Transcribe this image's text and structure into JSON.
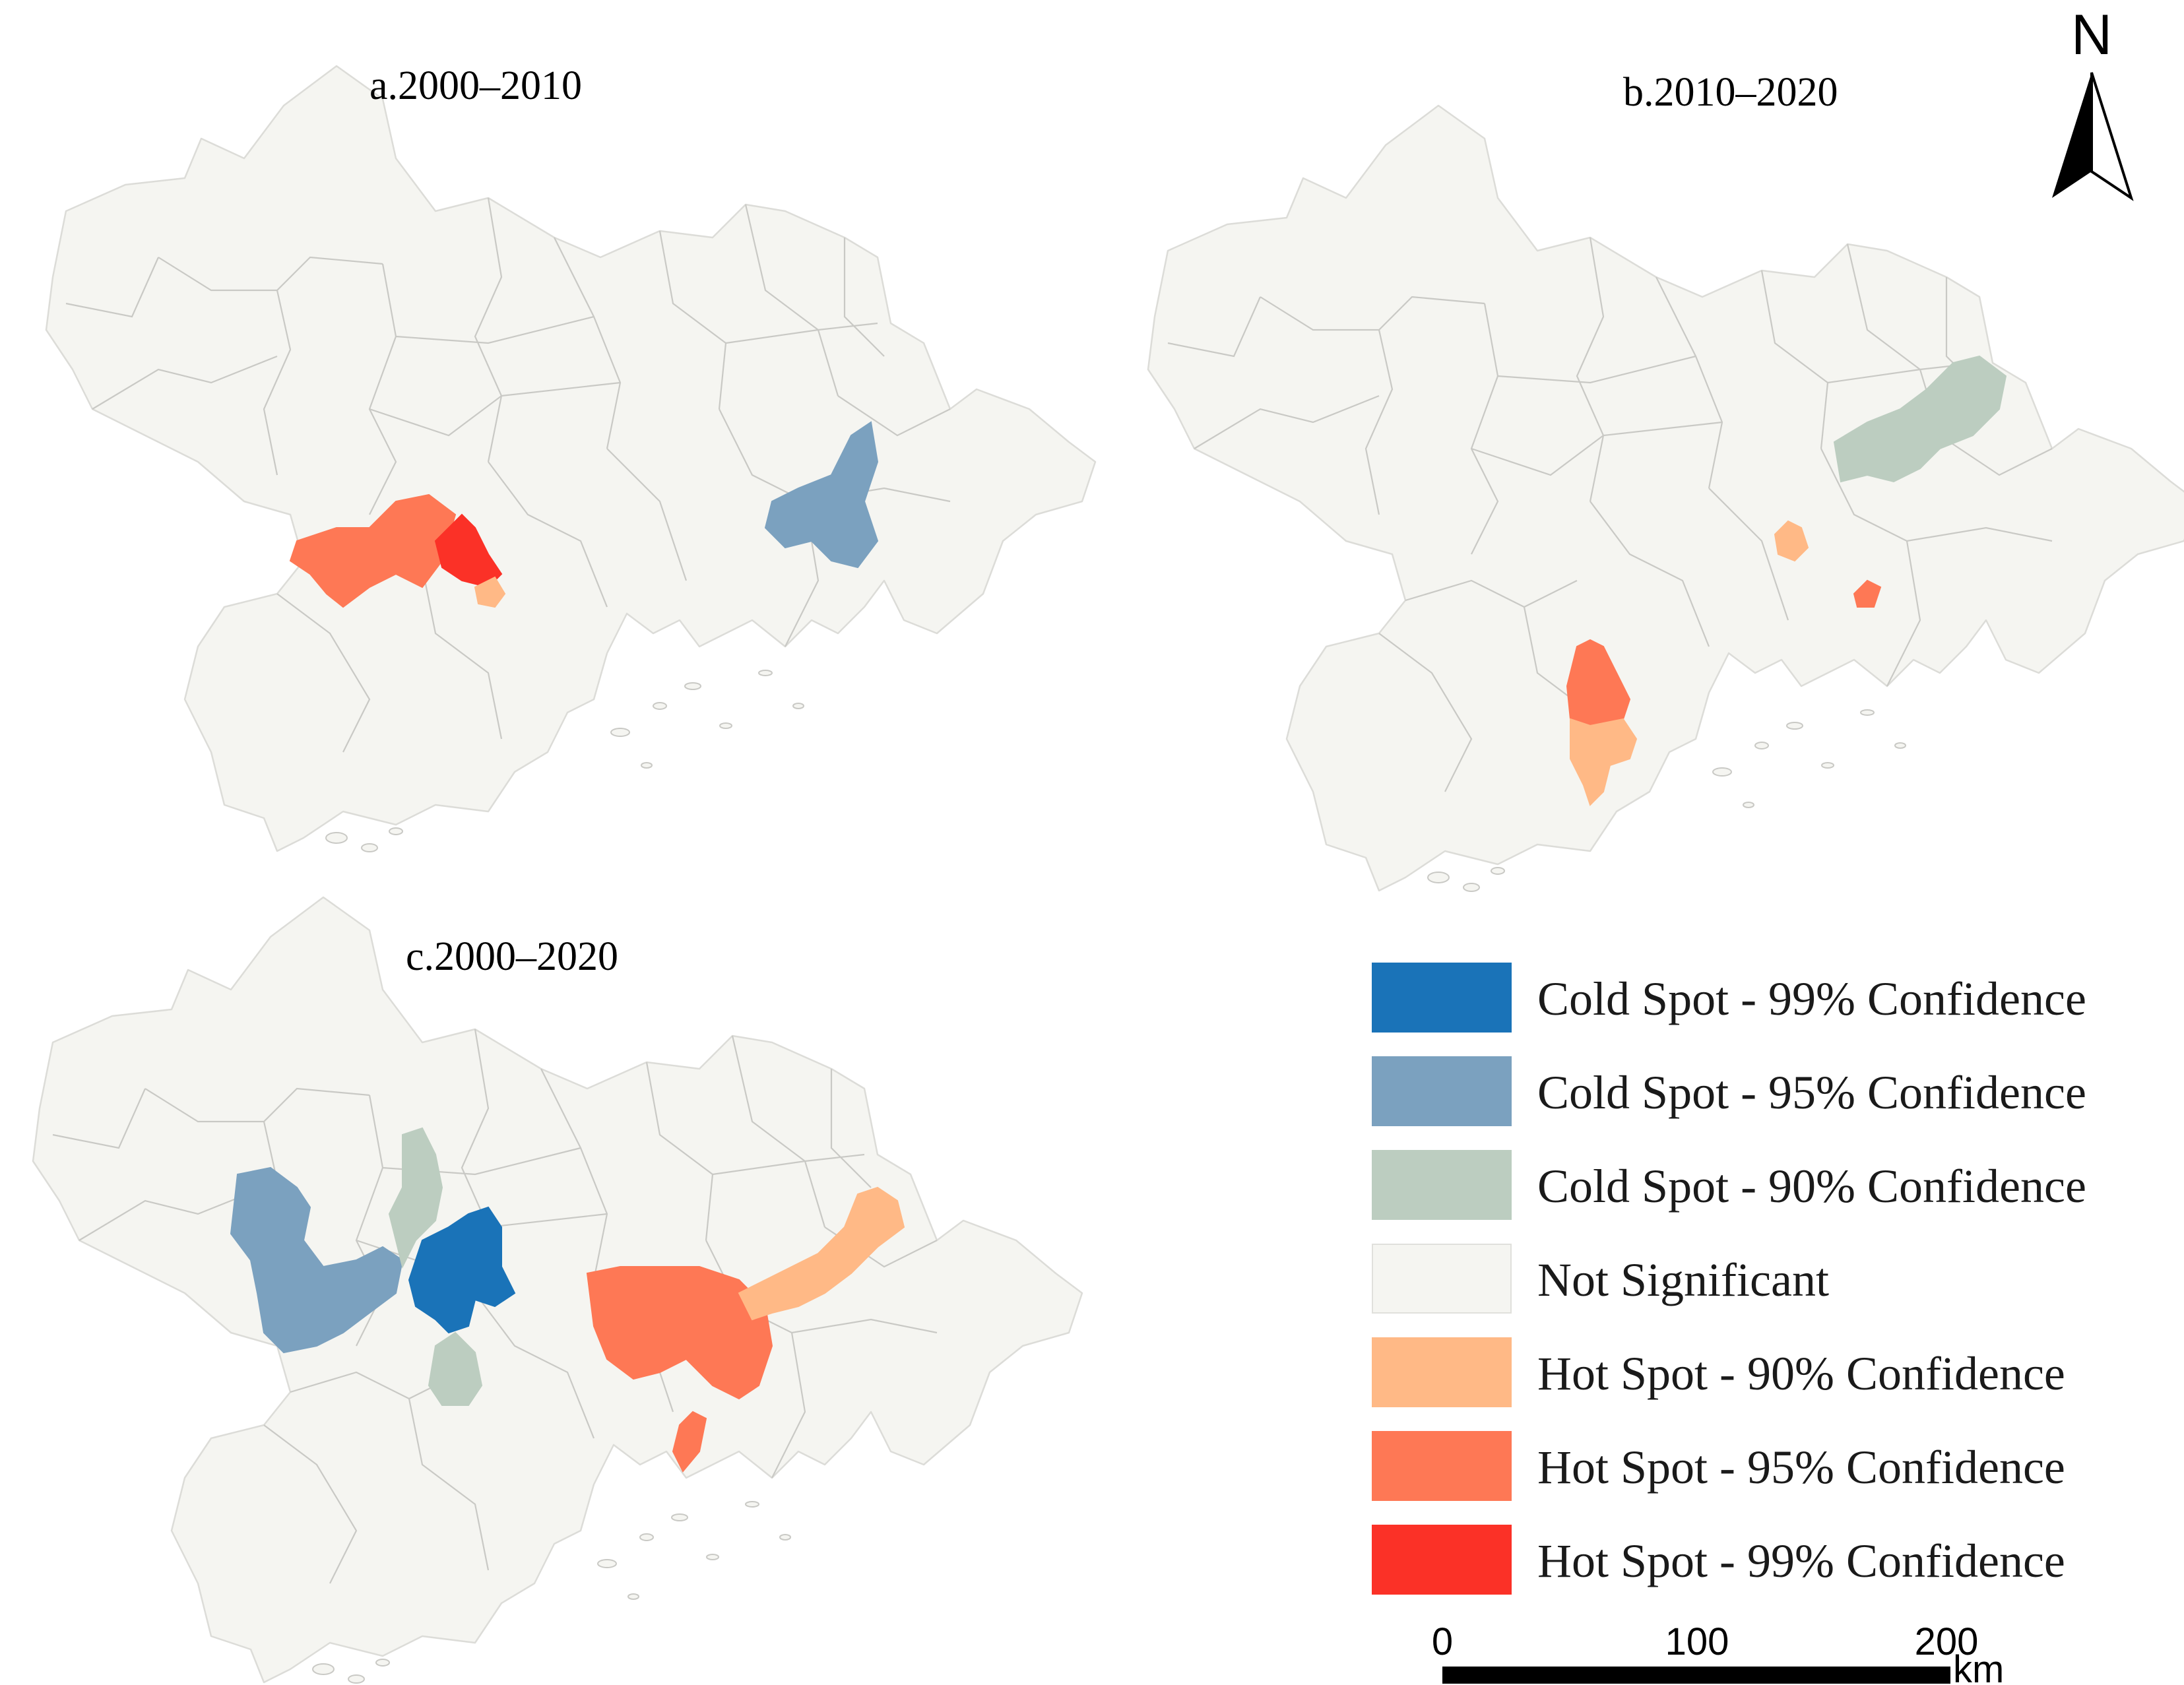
{
  "colors": {
    "not_significant": "#f5f5f1",
    "cold_99": "#1a73b8",
    "cold_95": "#7ba1bf",
    "cold_90": "#bccdc0",
    "hot_90": "#ffb986",
    "hot_95": "#fe7855",
    "hot_99": "#fb3127",
    "boundary": "#dcdcd8"
  },
  "maps": [
    {
      "id": "a",
      "title": "a.2000–2010"
    },
    {
      "id": "b",
      "title": "b.2010–2020"
    },
    {
      "id": "c",
      "title": "c.2000–2020"
    }
  ],
  "legend": [
    {
      "key": "cold_99",
      "label": "Cold Spot - 99% Confidence"
    },
    {
      "key": "cold_95",
      "label": "Cold Spot - 95% Confidence"
    },
    {
      "key": "cold_90",
      "label": "Cold Spot - 90% Confidence"
    },
    {
      "key": "not_significant",
      "label": "Not Significant"
    },
    {
      "key": "hot_90",
      "label": "Hot Spot - 90% Confidence"
    },
    {
      "key": "hot_95",
      "label": "Hot Spot - 95% Confidence"
    },
    {
      "key": "hot_99",
      "label": "Hot Spot - 99% Confidence"
    }
  ],
  "scale_bar": {
    "ticks": [
      "0",
      "100",
      "200"
    ],
    "unit": "km"
  },
  "north_arrow": {
    "label": "N",
    "icon": "north-arrow-icon"
  }
}
